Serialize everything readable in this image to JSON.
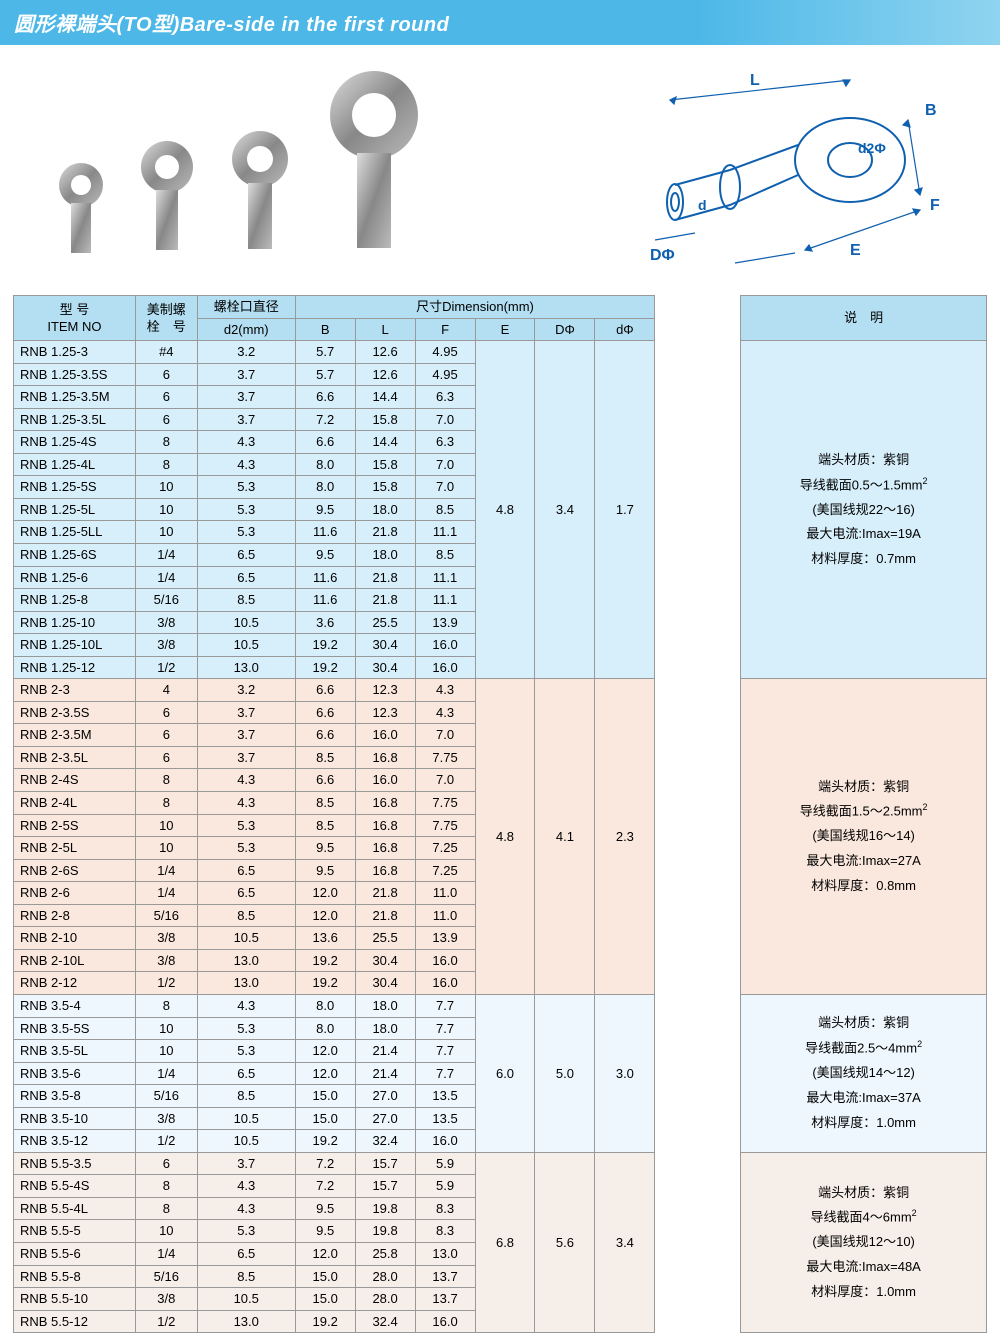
{
  "title": "圆形裸端头(TO型)Bare-side in the first round",
  "headers": {
    "item_no_cn": "型 号",
    "item_no_en": "ITEM NO",
    "bolt_cn": "美制螺",
    "bolt_cn2": "栓　号",
    "d2_label_cn": "螺栓口直径",
    "d2_label": "d2(mm)",
    "dim_label": "尺寸Dimension(mm)",
    "B": "B",
    "L": "L",
    "F": "F",
    "E": "E",
    "DPhi": "DΦ",
    "dPhi": "dΦ",
    "desc": "说　明"
  },
  "diagram_labels": {
    "L": "L",
    "B": "B",
    "d2": "d2Φ",
    "F": "F",
    "E": "E",
    "d": "d",
    "D": "DΦ"
  },
  "groups": [
    {
      "class": "group-a",
      "E": "4.8",
      "DPhi": "3.4",
      "dPhi": "1.7",
      "desc": [
        "端头材质：紫铜",
        "导线截面0.5～1.5mm²",
        "(美国线规22～16)",
        "最大电流:Imax=19A",
        "材料厚度：0.7mm"
      ],
      "rows": [
        [
          "RNB 1.25-3",
          "#4",
          "3.2",
          "5.7",
          "12.6",
          "4.95"
        ],
        [
          "RNB 1.25-3.5S",
          "6",
          "3.7",
          "5.7",
          "12.6",
          "4.95"
        ],
        [
          "RNB 1.25-3.5M",
          "6",
          "3.7",
          "6.6",
          "14.4",
          "6.3"
        ],
        [
          "RNB 1.25-3.5L",
          "6",
          "3.7",
          "7.2",
          "15.8",
          "7.0"
        ],
        [
          "RNB 1.25-4S",
          "8",
          "4.3",
          "6.6",
          "14.4",
          "6.3"
        ],
        [
          "RNB 1.25-4L",
          "8",
          "4.3",
          "8.0",
          "15.8",
          "7.0"
        ],
        [
          "RNB 1.25-5S",
          "10",
          "5.3",
          "8.0",
          "15.8",
          "7.0"
        ],
        [
          "RNB 1.25-5L",
          "10",
          "5.3",
          "9.5",
          "18.0",
          "8.5"
        ],
        [
          "RNB 1.25-5LL",
          "10",
          "5.3",
          "11.6",
          "21.8",
          "11.1"
        ],
        [
          "RNB 1.25-6S",
          "1/4",
          "6.5",
          "9.5",
          "18.0",
          "8.5"
        ],
        [
          "RNB 1.25-6",
          "1/4",
          "6.5",
          "11.6",
          "21.8",
          "11.1"
        ],
        [
          "RNB 1.25-8",
          "5/16",
          "8.5",
          "11.6",
          "21.8",
          "11.1"
        ],
        [
          "RNB 1.25-10",
          "3/8",
          "10.5",
          "3.6",
          "25.5",
          "13.9"
        ],
        [
          "RNB 1.25-10L",
          "3/8",
          "10.5",
          "19.2",
          "30.4",
          "16.0"
        ],
        [
          "RNB 1.25-12",
          "1/2",
          "13.0",
          "19.2",
          "30.4",
          "16.0"
        ]
      ]
    },
    {
      "class": "group-b",
      "E": "4.8",
      "DPhi": "4.1",
      "dPhi": "2.3",
      "desc": [
        "端头材质：紫铜",
        "导线截面1.5～2.5mm²",
        "(美国线规16～14)",
        "最大电流:Imax=27A",
        "材料厚度：0.8mm"
      ],
      "rows": [
        [
          "RNB 2-3",
          "4",
          "3.2",
          "6.6",
          "12.3",
          "4.3"
        ],
        [
          "RNB 2-3.5S",
          "6",
          "3.7",
          "6.6",
          "12.3",
          "4.3"
        ],
        [
          "RNB 2-3.5M",
          "6",
          "3.7",
          "6.6",
          "16.0",
          "7.0"
        ],
        [
          "RNB 2-3.5L",
          "6",
          "3.7",
          "8.5",
          "16.8",
          "7.75"
        ],
        [
          "RNB 2-4S",
          "8",
          "4.3",
          "6.6",
          "16.0",
          "7.0"
        ],
        [
          "RNB 2-4L",
          "8",
          "4.3",
          "8.5",
          "16.8",
          "7.75"
        ],
        [
          "RNB 2-5S",
          "10",
          "5.3",
          "8.5",
          "16.8",
          "7.75"
        ],
        [
          "RNB 2-5L",
          "10",
          "5.3",
          "9.5",
          "16.8",
          "7.25"
        ],
        [
          "RNB 2-6S",
          "1/4",
          "6.5",
          "9.5",
          "16.8",
          "7.25"
        ],
        [
          "RNB 2-6",
          "1/4",
          "6.5",
          "12.0",
          "21.8",
          "11.0"
        ],
        [
          "RNB 2-8",
          "5/16",
          "8.5",
          "12.0",
          "21.8",
          "11.0"
        ],
        [
          "RNB 2-10",
          "3/8",
          "10.5",
          "13.6",
          "25.5",
          "13.9"
        ],
        [
          "RNB 2-10L",
          "3/8",
          "13.0",
          "19.2",
          "30.4",
          "16.0"
        ],
        [
          "RNB 2-12",
          "1/2",
          "13.0",
          "19.2",
          "30.4",
          "16.0"
        ]
      ]
    },
    {
      "class": "group-c",
      "E": "6.0",
      "DPhi": "5.0",
      "dPhi": "3.0",
      "desc": [
        "端头材质：紫铜",
        "导线截面2.5～4mm²",
        "(美国线规14～12)",
        "最大电流:Imax=37A",
        "材料厚度：1.0mm"
      ],
      "rows": [
        [
          "RNB 3.5-4",
          "8",
          "4.3",
          "8.0",
          "18.0",
          "7.7"
        ],
        [
          "RNB 3.5-5S",
          "10",
          "5.3",
          "8.0",
          "18.0",
          "7.7"
        ],
        [
          "RNB 3.5-5L",
          "10",
          "5.3",
          "12.0",
          "21.4",
          "7.7"
        ],
        [
          "RNB 3.5-6",
          "1/4",
          "6.5",
          "12.0",
          "21.4",
          "7.7"
        ],
        [
          "RNB 3.5-8",
          "5/16",
          "8.5",
          "15.0",
          "27.0",
          "13.5"
        ],
        [
          "RNB 3.5-10",
          "3/8",
          "10.5",
          "15.0",
          "27.0",
          "13.5"
        ],
        [
          "RNB 3.5-12",
          "1/2",
          "10.5",
          "19.2",
          "32.4",
          "16.0"
        ]
      ]
    },
    {
      "class": "group-d",
      "E": "6.8",
      "DPhi": "5.6",
      "dPhi": "3.4",
      "desc": [
        "端头材质：紫铜",
        "导线截面4～6mm²",
        "(美国线规12～10)",
        "最大电流:Imax=48A",
        "材料厚度：1.0mm"
      ],
      "rows": [
        [
          "RNB 5.5-3.5",
          "6",
          "3.7",
          "7.2",
          "15.7",
          "5.9"
        ],
        [
          "RNB 5.5-4S",
          "8",
          "4.3",
          "7.2",
          "15.7",
          "5.9"
        ],
        [
          "RNB 5.5-4L",
          "8",
          "4.3",
          "9.5",
          "19.8",
          "8.3"
        ],
        [
          "RNB 5.5-5",
          "10",
          "5.3",
          "9.5",
          "19.8",
          "8.3"
        ],
        [
          "RNB 5.5-6",
          "1/4",
          "6.5",
          "12.0",
          "25.8",
          "13.0"
        ],
        [
          "RNB 5.5-8",
          "5/16",
          "8.5",
          "15.0",
          "28.0",
          "13.7"
        ],
        [
          "RNB 5.5-10",
          "3/8",
          "10.5",
          "15.0",
          "28.0",
          "13.7"
        ],
        [
          "RNB 5.5-12",
          "1/2",
          "13.0",
          "19.2",
          "32.4",
          "16.0"
        ]
      ]
    }
  ],
  "colors": {
    "header_bg": "#b4dff2",
    "group_a_bg": "#d7effa",
    "group_b_bg": "#fae7dd",
    "group_c_bg": "#edf7fd",
    "group_d_bg": "#f6eee8"
  }
}
